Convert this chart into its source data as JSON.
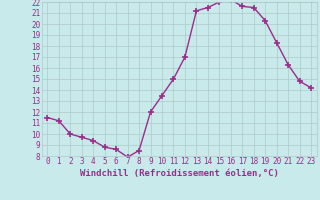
{
  "x": [
    0,
    1,
    2,
    3,
    4,
    5,
    6,
    7,
    8,
    9,
    10,
    11,
    12,
    13,
    14,
    15,
    16,
    17,
    18,
    19,
    20,
    21,
    22,
    23
  ],
  "y": [
    11.5,
    11.2,
    10.0,
    9.7,
    9.4,
    8.8,
    8.6,
    7.9,
    8.5,
    12.0,
    13.5,
    15.0,
    17.0,
    21.2,
    21.5,
    22.0,
    22.2,
    21.6,
    21.5,
    20.3,
    18.3,
    16.3,
    14.8,
    14.2
  ],
  "ylim": [
    8,
    22
  ],
  "yticks": [
    8,
    9,
    10,
    11,
    12,
    13,
    14,
    15,
    16,
    17,
    18,
    19,
    20,
    21,
    22
  ],
  "xlim": [
    -0.5,
    23.5
  ],
  "xticks": [
    0,
    1,
    2,
    3,
    4,
    5,
    6,
    7,
    8,
    9,
    10,
    11,
    12,
    13,
    14,
    15,
    16,
    17,
    18,
    19,
    20,
    21,
    22,
    23
  ],
  "line_color": "#9b2d8a",
  "bg_color": "#c8eaea",
  "grid_color": "#b0c8c8",
  "xlabel": "Windchill (Refroidissement éolien,°C)",
  "xlabel_color": "#9b2d8a",
  "tick_color": "#9b2d8a",
  "marker": "+",
  "marker_size": 4,
  "linewidth": 1.0,
  "tick_fontsize": 5.5,
  "xlabel_fontsize": 6.5
}
